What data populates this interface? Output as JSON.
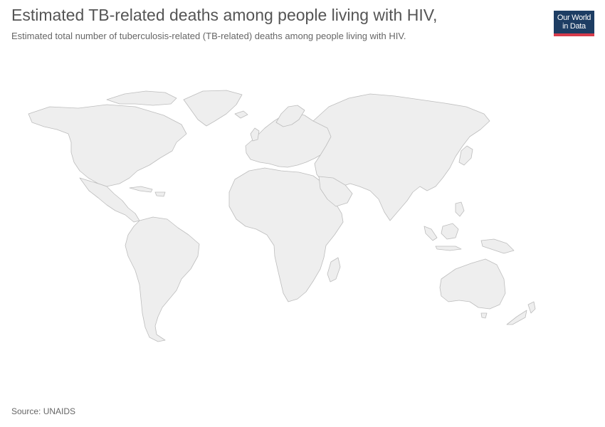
{
  "header": {
    "title": "Estimated TB-related deaths among people living with HIV,",
    "subtitle": "Estimated total number of tuberculosis-related (TB-related) deaths among people living with HIV."
  },
  "logo": {
    "line1": "Our World",
    "line2": "in Data",
    "background_color": "#1d3d63",
    "accent_color": "#d73c4b"
  },
  "map": {
    "type": "choropleth",
    "no_data_fill": "#eeeeee",
    "border_color": "#bdbdbd"
  },
  "footer": {
    "source": "Source: UNAIDS"
  }
}
